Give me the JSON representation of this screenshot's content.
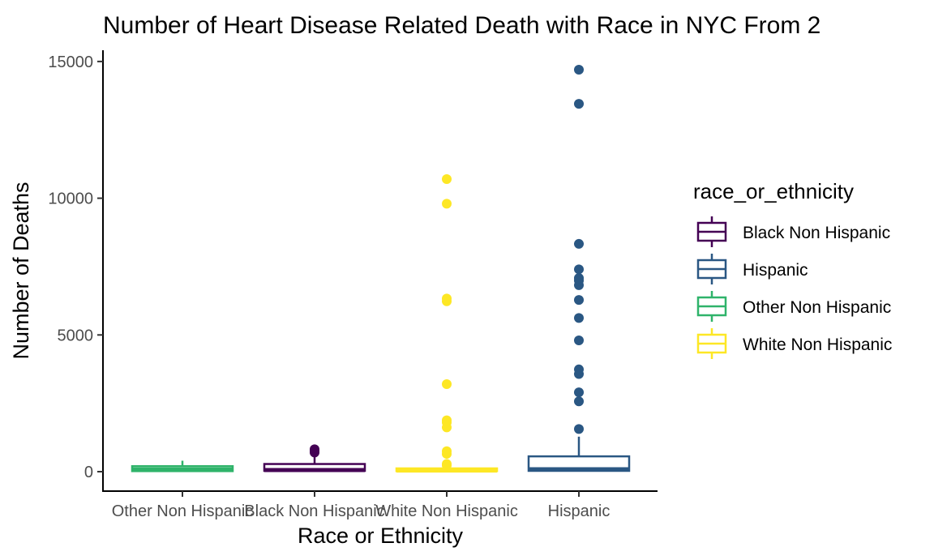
{
  "chart_data": {
    "type": "boxplot",
    "title": "Number of Heart Disease Related Death with Race in NYC From 2",
    "xlabel": "Race or Ethnicity",
    "ylabel": "Number of Deaths",
    "ylim": [
      -700,
      15350
    ],
    "yticks": [
      0,
      5000,
      10000,
      15000
    ],
    "grid": false,
    "legend_position": "right",
    "categories": [
      "Other Non Hispanic",
      "Black Non Hispanic",
      "White Non Hispanic",
      "Hispanic"
    ],
    "legend": {
      "title": "race_or_ethnicity",
      "items": [
        {
          "label": "Black Non Hispanic",
          "color": "#440154"
        },
        {
          "label": "Hispanic",
          "color": "#2a5783"
        },
        {
          "label": "Other Non Hispanic",
          "color": "#2fb36a"
        },
        {
          "label": "White Non Hispanic",
          "color": "#fde725"
        }
      ]
    },
    "series": [
      {
        "category": "Other Non Hispanic",
        "color": "#2fb36a",
        "whisker_low": 5,
        "q1": 20,
        "median": 80,
        "q3": 200,
        "whisker_high": 400,
        "outliers": []
      },
      {
        "category": "Black Non Hispanic",
        "color": "#440154",
        "whisker_low": 5,
        "q1": 30,
        "median": 60,
        "q3": 280,
        "whisker_high": 580,
        "outliers": [
          700,
          760,
          820
        ]
      },
      {
        "category": "White Non Hispanic",
        "color": "#fde725",
        "whisker_low": 5,
        "q1": 20,
        "median": 40,
        "q3": 120,
        "whisker_high": 180,
        "outliers": [
          230,
          280,
          650,
          750,
          1620,
          1800,
          1880,
          3200,
          6230,
          6330,
          9800,
          10700
        ]
      },
      {
        "category": "Hispanic",
        "color": "#2a5783",
        "whisker_low": 5,
        "q1": 30,
        "median": 90,
        "q3": 560,
        "whisker_high": 1280,
        "outliers": [
          1560,
          2570,
          2900,
          3570,
          3740,
          4800,
          5620,
          6280,
          6820,
          6990,
          7080,
          7400,
          8330,
          13450,
          14700
        ]
      }
    ]
  }
}
